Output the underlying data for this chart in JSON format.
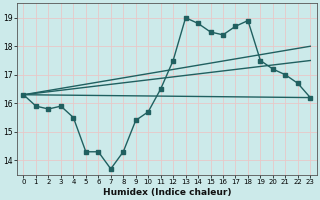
{
  "xlabel": "Humidex (Indice chaleur)",
  "bg_color": "#cceaea",
  "grid_color": "#e8c8c8",
  "line_color": "#206060",
  "ylim": [
    13.5,
    19.5
  ],
  "xlim": [
    -0.5,
    23.5
  ],
  "yticks": [
    14,
    15,
    16,
    17,
    18,
    19
  ],
  "xticks": [
    0,
    1,
    2,
    3,
    4,
    5,
    6,
    7,
    8,
    9,
    10,
    11,
    12,
    13,
    14,
    15,
    16,
    17,
    18,
    19,
    20,
    21,
    22,
    23
  ],
  "line1_x": [
    0,
    1,
    2,
    3,
    4,
    5,
    6,
    7,
    8,
    9,
    10,
    11,
    12,
    13,
    14,
    15,
    16,
    17,
    18,
    19,
    20,
    21,
    22,
    23
  ],
  "line1_y": [
    16.3,
    15.9,
    15.8,
    15.9,
    15.5,
    14.3,
    14.3,
    13.7,
    14.3,
    15.4,
    15.7,
    16.5,
    17.5,
    19.0,
    18.8,
    18.5,
    18.4,
    18.7,
    18.9,
    17.5,
    17.2,
    17.0,
    16.7,
    16.2
  ],
  "line2_x": [
    0,
    23
  ],
  "line2_y": [
    16.3,
    16.2
  ],
  "line3_x": [
    0,
    23
  ],
  "line3_y": [
    16.3,
    18.0
  ],
  "line4_x": [
    0,
    23
  ],
  "line4_y": [
    16.3,
    17.5
  ]
}
